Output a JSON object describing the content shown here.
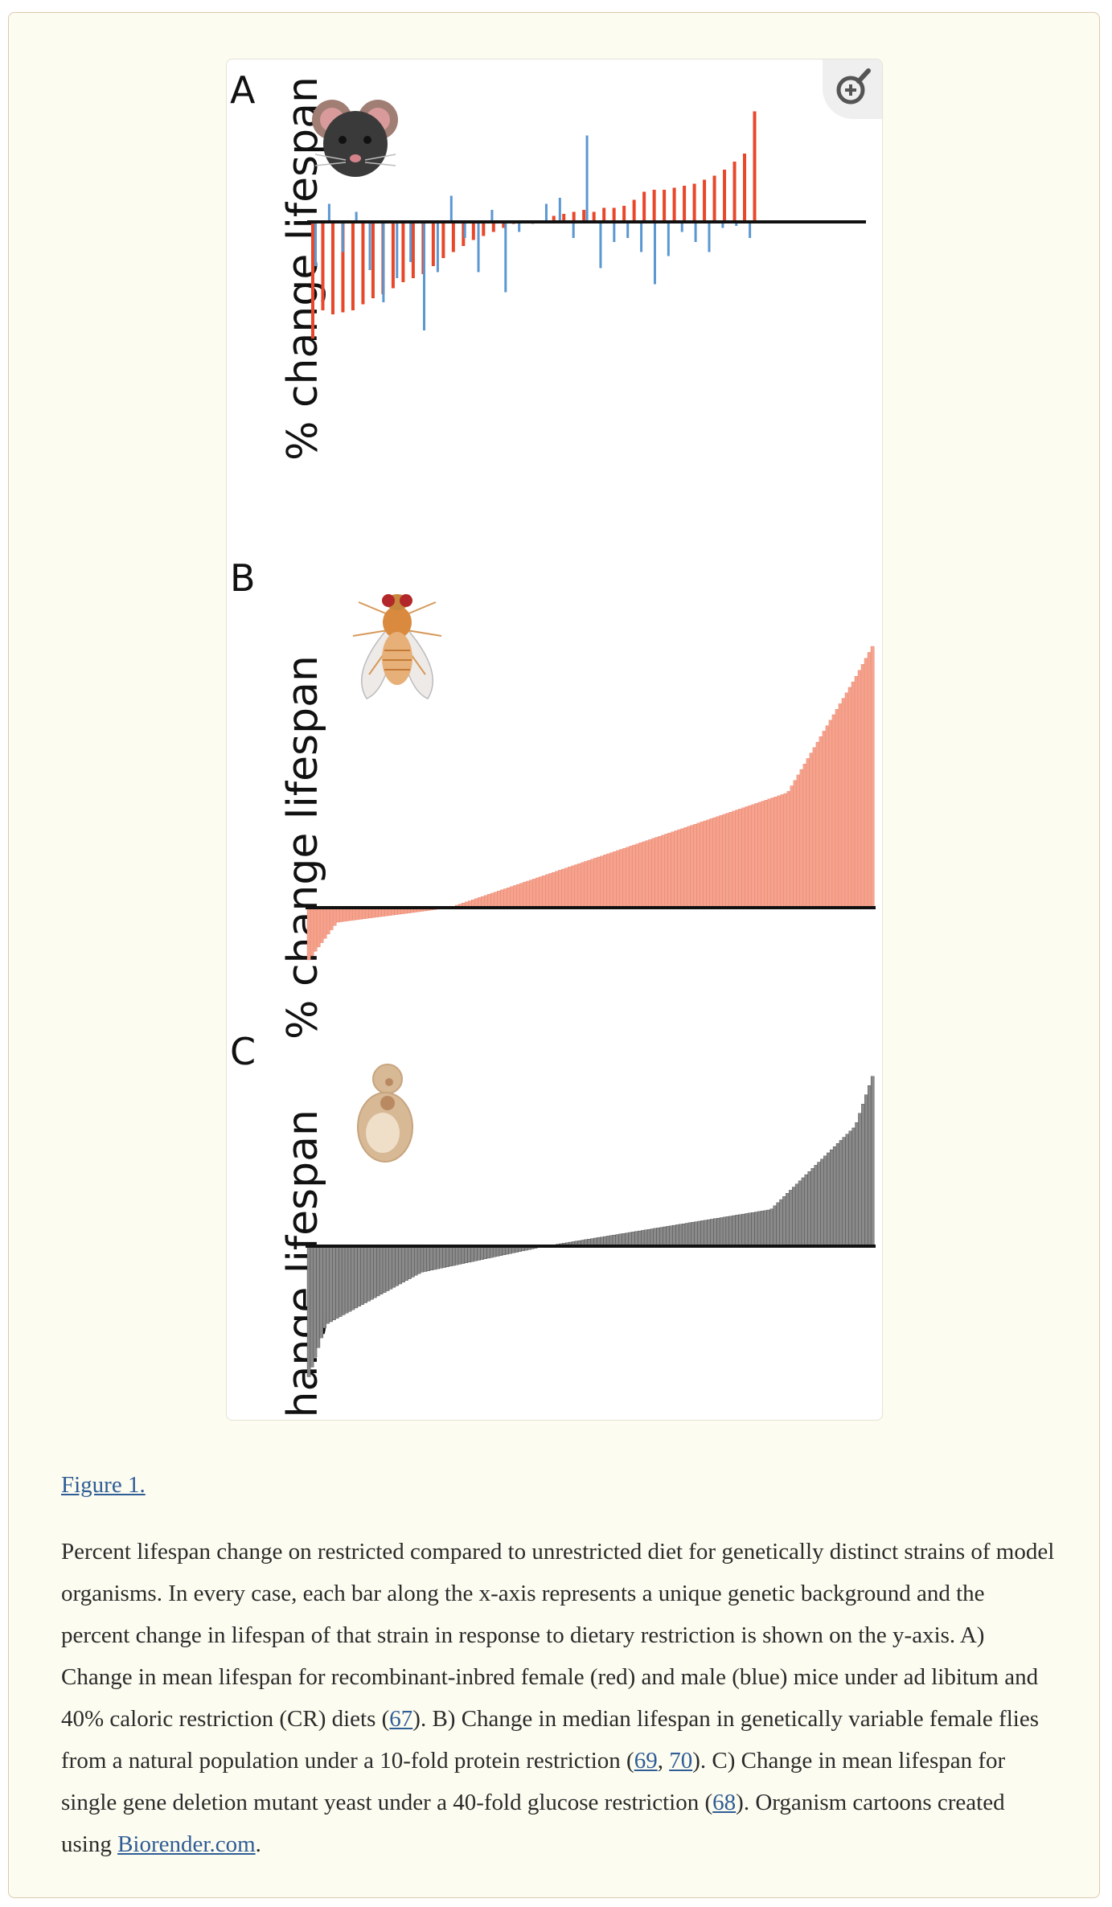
{
  "figure": {
    "label": "Figure 1.",
    "icon": "zoom-in-icon",
    "panel_letters": [
      "A",
      "B",
      "C"
    ],
    "y_axis_label": "% change lifespan",
    "organism_icons": [
      "mouse-icon",
      "fly-icon",
      "yeast-icon"
    ]
  },
  "caption": {
    "t1": "Percent lifespan change on restricted compared to unrestricted diet for genetically distinct strains of model organisms. In every case, each bar along the x-axis represents a unique genetic background and the percent change in lifespan of that strain in response to dietary restriction is shown on the y-axis. A) Change in mean lifespan for recombinant-inbred female (red) and male (blue) mice under ad libitum and 40% caloric restriction (CR) diets (",
    "ref67": "67",
    "t2": "). B) Change in median lifespan in genetically variable female flies from a natural population under a 10-fold protein restriction (",
    "ref69": "69",
    "sep": ", ",
    "ref70": "70",
    "t3": "). C) Change in mean lifespan for single gene deletion mutant yeast under a 40-fold glucose restriction (",
    "ref68": "68",
    "t4": "). Organism cartoons created using ",
    "biorender": "Biorender.com",
    "t5": "."
  },
  "chart_data": [
    {
      "type": "bar",
      "panel": "A",
      "ylabel": "% change lifespan",
      "colors": {
        "female": "#e8472a",
        "male": "#5b97d1"
      },
      "series": [
        {
          "values": [
            -58,
            -44,
            -46,
            -45,
            -44,
            -41,
            -38,
            -36,
            -33,
            -30,
            -28,
            -26,
            -22,
            -18,
            -15,
            -12,
            -9,
            -7,
            -5,
            -3,
            -1,
            0,
            0,
            0,
            3,
            4,
            5,
            6,
            5,
            7,
            7,
            8,
            11,
            15,
            16,
            16,
            17,
            18,
            19,
            21,
            23,
            26,
            30,
            34,
            55
          ]
        },
        {
          "values": [
            -22,
            9,
            -15,
            5,
            -24,
            -40,
            -28,
            -20,
            -54,
            -25,
            13,
            -8,
            -25,
            6,
            -35,
            -5,
            -1,
            9,
            12,
            -8,
            43,
            -23,
            -10,
            -8,
            -15,
            -31,
            -17,
            -5,
            -10,
            -15,
            -3,
            -2,
            -8
          ]
        }
      ]
    },
    {
      "type": "bar",
      "panel": "B",
      "ylabel": "% change lifespan",
      "colors": {
        "bar": "#f5a38e",
        "edge": "#e26b52"
      },
      "n_bars": 176,
      "values_range": [
        -25,
        125
      ],
      "note": "values sorted ascending"
    },
    {
      "type": "bar",
      "panel": "C",
      "ylabel": "% change lifespan",
      "colors": {
        "bar": "#8a8a8a",
        "edge": "#222222"
      },
      "n_bars": 180,
      "values_range": [
        -50,
        65
      ],
      "note": "values sorted ascending"
    }
  ]
}
